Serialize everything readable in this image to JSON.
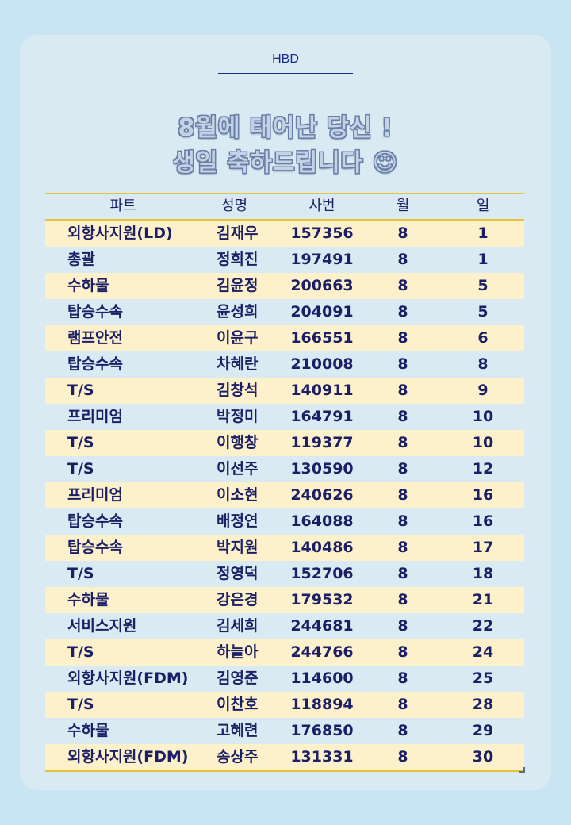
{
  "header": {
    "tag": "HBD"
  },
  "headline": {
    "line1": "8월에 태어난 당신 !",
    "line2": "생일 축하드립니다 ☺"
  },
  "table": {
    "columns": [
      "파트",
      "성명",
      "사번",
      "월",
      "일"
    ],
    "rows": [
      [
        "외항사지원(LD)",
        "김재우",
        "157356",
        "8",
        "1"
      ],
      [
        "총괄",
        "정희진",
        "197491",
        "8",
        "1"
      ],
      [
        "수하물",
        "김윤정",
        "200663",
        "8",
        "5"
      ],
      [
        "탑승수속",
        "윤성희",
        "204091",
        "8",
        "5"
      ],
      [
        "램프안전",
        "이윤구",
        "166551",
        "8",
        "6"
      ],
      [
        "탑승수속",
        "차혜란",
        "210008",
        "8",
        "8"
      ],
      [
        "T/S",
        "김창석",
        "140911",
        "8",
        "9"
      ],
      [
        "프리미엄",
        "박정미",
        "164791",
        "8",
        "10"
      ],
      [
        "T/S",
        "이행창",
        "119377",
        "8",
        "10"
      ],
      [
        "T/S",
        "이선주",
        "130590",
        "8",
        "12"
      ],
      [
        "프리미엄",
        "이소현",
        "240626",
        "8",
        "16"
      ],
      [
        "탑승수속",
        "배정연",
        "164088",
        "8",
        "16"
      ],
      [
        "탑승수속",
        "박지원",
        "140486",
        "8",
        "17"
      ],
      [
        "T/S",
        "정영덕",
        "152706",
        "8",
        "18"
      ],
      [
        "수하물",
        "강은경",
        "179532",
        "8",
        "21"
      ],
      [
        "서비스지원",
        "김세희",
        "244681",
        "8",
        "22"
      ],
      [
        "T/S",
        "하늘아",
        "244766",
        "8",
        "24"
      ],
      [
        "외항사지원(FDM)",
        "김영준",
        "114600",
        "8",
        "25"
      ],
      [
        "T/S",
        "이찬호",
        "118894",
        "8",
        "28"
      ],
      [
        "수하물",
        "고혜련",
        "176850",
        "8",
        "29"
      ],
      [
        "외항사지원(FDM)",
        "송상주",
        "131331",
        "8",
        "30"
      ]
    ]
  },
  "colors": {
    "background": "#c9e4f2",
    "card": "#daeaf3",
    "row_alt": "#fdf1cc",
    "rule": "#e8c33a",
    "text": "#1c1f66"
  }
}
